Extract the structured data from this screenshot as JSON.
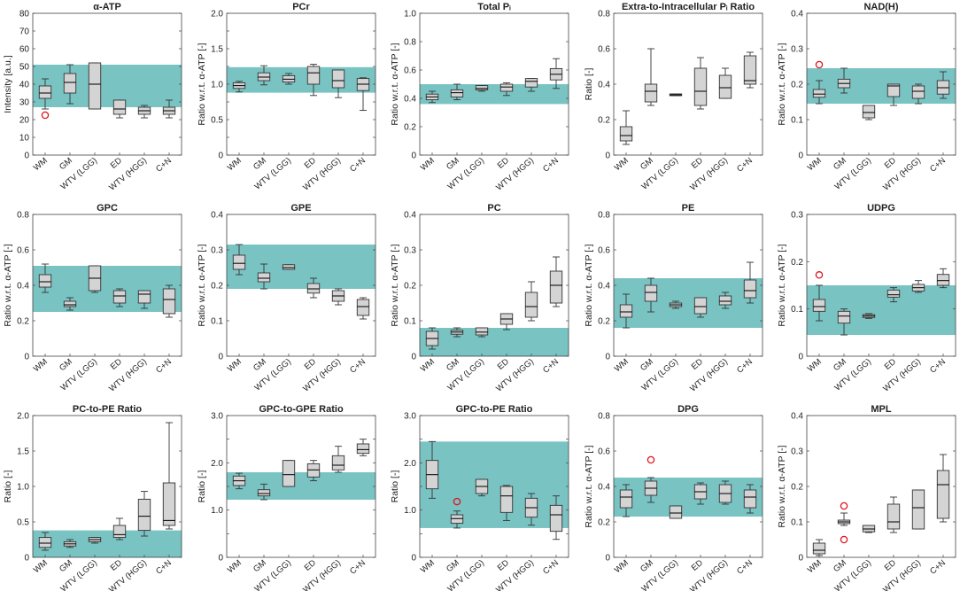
{
  "colors": {
    "band": "#79c3c3",
    "box_fill": "#d4d4d4",
    "box_stroke": "#333333",
    "outlier": "#e0141e",
    "axis": "#444444"
  },
  "categories": [
    "WM",
    "GM",
    "WTV (LGG)",
    "ED",
    "WTV (HGG)",
    "C+N"
  ],
  "chart_data": [
    {
      "type": "box",
      "title": "α-ATP",
      "ylabel": "Intensity [a.u.]",
      "ylim": [
        0,
        80
      ],
      "yticks": [
        0,
        10,
        20,
        30,
        40,
        50,
        60,
        70,
        80
      ],
      "ytick_labels": [
        "0",
        "10",
        "20",
        "30",
        "40",
        "50",
        "60",
        "70",
        "80"
      ],
      "band": [
        27,
        51
      ],
      "boxes": [
        [
          26,
          32,
          35,
          39,
          43
        ],
        [
          29,
          35,
          41,
          46,
          51
        ],
        [
          26,
          26,
          40,
          52,
          52
        ],
        [
          21,
          23,
          26,
          31,
          31
        ],
        [
          21,
          23,
          25,
          27,
          28
        ],
        [
          21,
          23,
          25,
          27,
          31
        ]
      ],
      "outliers": [
        [
          0,
          22.5
        ]
      ]
    },
    {
      "type": "box",
      "title": "PCr",
      "ylabel": "Ratio w.r.t. α-ATP [-]",
      "ylim": [
        0,
        2
      ],
      "yticks": [
        0,
        0.25,
        0.5,
        0.75,
        1,
        1.25,
        1.5,
        1.75,
        2
      ],
      "ytick_labels": [
        "0",
        "",
        "0.5",
        "",
        "1.0",
        "",
        "1.5",
        "",
        "2.0"
      ],
      "band": [
        0.88,
        1.24
      ],
      "boxes": [
        [
          0.89,
          0.94,
          0.98,
          1.02,
          1.04
        ],
        [
          0.99,
          1.05,
          1.1,
          1.16,
          1.26
        ],
        [
          1.0,
          1.03,
          1.07,
          1.12,
          1.15
        ],
        [
          0.84,
          1.0,
          1.16,
          1.25,
          1.28
        ],
        [
          0.81,
          0.95,
          1.05,
          1.2,
          1.2
        ],
        [
          0.63,
          0.91,
          1.0,
          1.08,
          1.09
        ]
      ],
      "outliers": []
    },
    {
      "type": "box",
      "title": "Total Pᵢ",
      "ylabel": "Ratio w.r.t. α-ATP [-]",
      "ylim": [
        0,
        1
      ],
      "yticks": [
        0,
        0.2,
        0.4,
        0.6,
        0.8,
        1.0
      ],
      "ytick_labels": [
        "0",
        "0.2",
        "0.4",
        "0.6",
        "0.8",
        "1.0"
      ],
      "band": [
        0.36,
        0.5
      ],
      "boxes": [
        [
          0.37,
          0.39,
          0.41,
          0.43,
          0.45
        ],
        [
          0.39,
          0.41,
          0.44,
          0.46,
          0.5
        ],
        [
          0.45,
          0.46,
          0.47,
          0.49,
          0.49
        ],
        [
          0.42,
          0.45,
          0.48,
          0.5,
          0.51
        ],
        [
          0.45,
          0.48,
          0.52,
          0.54,
          0.54
        ],
        [
          0.47,
          0.53,
          0.57,
          0.61,
          0.68
        ]
      ],
      "outliers": []
    },
    {
      "type": "box",
      "title": "Extra-to-Intracellular Pᵢ Ratio",
      "ylabel": "Ratio [-]",
      "ylim": [
        0,
        0.8
      ],
      "yticks": [
        0,
        0.2,
        0.4,
        0.6,
        0.8
      ],
      "ytick_labels": [
        "0",
        "0.2",
        "0.4",
        "0.6",
        "0.8"
      ],
      "band": null,
      "boxes": [
        [
          0.06,
          0.08,
          0.11,
          0.16,
          0.25
        ],
        [
          0.28,
          0.3,
          0.36,
          0.4,
          0.6
        ],
        [
          0.335,
          0.335,
          0.34,
          0.345,
          0.345
        ],
        [
          0.26,
          0.28,
          0.36,
          0.49,
          0.55
        ],
        [
          0.32,
          0.32,
          0.38,
          0.45,
          0.49
        ],
        [
          0.38,
          0.4,
          0.42,
          0.56,
          0.58
        ]
      ],
      "outliers": []
    },
    {
      "type": "box",
      "title": "NAD(H)",
      "ylabel": "Ratio w.r.t. α-ATP [-]",
      "ylim": [
        0,
        0.4
      ],
      "yticks": [
        0,
        0.1,
        0.2,
        0.3,
        0.4
      ],
      "ytick_labels": [
        "0",
        "0.1",
        "0.2",
        "0.3",
        "0.4"
      ],
      "band": [
        0.145,
        0.245
      ],
      "boxes": [
        [
          0.145,
          0.163,
          0.172,
          0.185,
          0.21
        ],
        [
          0.175,
          0.19,
          0.202,
          0.214,
          0.245
        ],
        [
          0.1,
          0.105,
          0.12,
          0.14,
          0.14
        ],
        [
          0.14,
          0.165,
          0.195,
          0.2,
          0.2
        ],
        [
          0.145,
          0.16,
          0.18,
          0.195,
          0.2
        ],
        [
          0.16,
          0.172,
          0.19,
          0.21,
          0.235
        ]
      ],
      "outliers": [
        [
          0,
          0.255
        ]
      ]
    },
    {
      "type": "box",
      "title": "GPC",
      "ylabel": "Ratio w.r.t. α-ATP [-]",
      "ylim": [
        0,
        0.8
      ],
      "yticks": [
        0,
        0.2,
        0.4,
        0.6,
        0.8
      ],
      "ytick_labels": [
        "0",
        "0.2",
        "0.4",
        "0.6",
        "0.8"
      ],
      "band": [
        0.25,
        0.51
      ],
      "boxes": [
        [
          0.36,
          0.39,
          0.42,
          0.46,
          0.52
        ],
        [
          0.26,
          0.28,
          0.29,
          0.31,
          0.33
        ],
        [
          0.36,
          0.37,
          0.44,
          0.51,
          0.51
        ],
        [
          0.28,
          0.3,
          0.34,
          0.37,
          0.38
        ],
        [
          0.27,
          0.3,
          0.35,
          0.37,
          0.37
        ],
        [
          0.22,
          0.24,
          0.32,
          0.38,
          0.4
        ]
      ],
      "outliers": []
    },
    {
      "type": "box",
      "title": "GPE",
      "ylabel": "Ratio w.r.t. α-ATP [-]",
      "ylim": [
        0,
        0.4
      ],
      "yticks": [
        0,
        0.1,
        0.2,
        0.3,
        0.4
      ],
      "ytick_labels": [
        "0",
        "0.1",
        "0.2",
        "0.3",
        "0.4"
      ],
      "band": [
        0.19,
        0.315
      ],
      "boxes": [
        [
          0.23,
          0.245,
          0.262,
          0.285,
          0.315
        ],
        [
          0.19,
          0.21,
          0.22,
          0.235,
          0.26
        ],
        [
          0.245,
          0.245,
          0.25,
          0.258,
          0.258
        ],
        [
          0.165,
          0.178,
          0.19,
          0.205,
          0.22
        ],
        [
          0.145,
          0.155,
          0.17,
          0.185,
          0.19
        ],
        [
          0.105,
          0.115,
          0.14,
          0.16,
          0.165
        ]
      ],
      "outliers": []
    },
    {
      "type": "box",
      "title": "PC",
      "ylabel": "Ratio w.r.t. α-ATP [-]",
      "ylim": [
        0,
        0.4
      ],
      "yticks": [
        0,
        0.1,
        0.2,
        0.3,
        0.4
      ],
      "ytick_labels": [
        "0",
        "0.1",
        "0.2",
        "0.3",
        "0.4"
      ],
      "band": [
        0.0,
        0.08
      ],
      "boxes": [
        [
          0.02,
          0.03,
          0.05,
          0.07,
          0.08
        ],
        [
          0.055,
          0.062,
          0.068,
          0.073,
          0.08
        ],
        [
          0.055,
          0.06,
          0.068,
          0.08,
          0.08
        ],
        [
          0.075,
          0.09,
          0.105,
          0.12,
          0.12
        ],
        [
          0.1,
          0.11,
          0.14,
          0.18,
          0.21
        ],
        [
          0.14,
          0.15,
          0.2,
          0.24,
          0.28
        ]
      ],
      "outliers": []
    },
    {
      "type": "box",
      "title": "PE",
      "ylabel": "Ratio w.r.t. α-ATP [-]",
      "ylim": [
        0,
        0.8
      ],
      "yticks": [
        0,
        0.2,
        0.4,
        0.6,
        0.8
      ],
      "ytick_labels": [
        "0",
        "0.2",
        "0.4",
        "0.6",
        "0.8"
      ],
      "band": [
        0.16,
        0.44
      ],
      "boxes": [
        [
          0.16,
          0.22,
          0.25,
          0.29,
          0.35
        ],
        [
          0.25,
          0.31,
          0.36,
          0.4,
          0.44
        ],
        [
          0.27,
          0.28,
          0.29,
          0.3,
          0.31
        ],
        [
          0.22,
          0.24,
          0.28,
          0.33,
          0.33
        ],
        [
          0.27,
          0.29,
          0.31,
          0.34,
          0.36
        ],
        [
          0.3,
          0.33,
          0.37,
          0.43,
          0.53
        ]
      ],
      "outliers": []
    },
    {
      "type": "box",
      "title": "UDPG",
      "ylabel": "Ratio w.r.t. α-ATP [-]",
      "ylim": [
        0,
        0.3
      ],
      "yticks": [
        0,
        0.1,
        0.2,
        0.3
      ],
      "ytick_labels": [
        "0",
        "0.1",
        "0.2",
        "0.3"
      ],
      "band": [
        0.045,
        0.15
      ],
      "boxes": [
        [
          0.075,
          0.095,
          0.105,
          0.12,
          0.15
        ],
        [
          0.045,
          0.07,
          0.085,
          0.095,
          0.1
        ],
        [
          0.08,
          0.082,
          0.085,
          0.088,
          0.09
        ],
        [
          0.115,
          0.125,
          0.13,
          0.14,
          0.145
        ],
        [
          0.135,
          0.138,
          0.145,
          0.152,
          0.16
        ],
        [
          0.145,
          0.15,
          0.16,
          0.173,
          0.185
        ]
      ],
      "outliers": [
        [
          0,
          0.172
        ]
      ]
    },
    {
      "type": "box",
      "title": "PC-to-PE Ratio",
      "ylabel": "Ratio [-]",
      "ylim": [
        0,
        2
      ],
      "yticks": [
        0,
        0.5,
        1,
        1.5,
        2
      ],
      "ytick_labels": [
        "0",
        "0.5",
        "1.0",
        "1.5",
        "2.0"
      ],
      "band": [
        0.0,
        0.38
      ],
      "boxes": [
        [
          0.1,
          0.14,
          0.2,
          0.28,
          0.35
        ],
        [
          0.14,
          0.16,
          0.19,
          0.22,
          0.25
        ],
        [
          0.2,
          0.22,
          0.25,
          0.28,
          0.28
        ],
        [
          0.25,
          0.28,
          0.32,
          0.45,
          0.55
        ],
        [
          0.3,
          0.38,
          0.58,
          0.82,
          0.93
        ],
        [
          0.4,
          0.45,
          0.52,
          1.05,
          1.9
        ]
      ],
      "outliers": []
    },
    {
      "type": "box",
      "title": "GPC-to-GPE Ratio",
      "ylabel": "Ratio [-]",
      "ylim": [
        0,
        3
      ],
      "yticks": [
        0,
        0.5,
        1,
        1.5,
        2,
        2.5,
        3
      ],
      "ytick_labels": [
        "0",
        "",
        "1.0",
        "",
        "2.0",
        "",
        "3.0"
      ],
      "band": [
        1.22,
        1.8
      ],
      "boxes": [
        [
          1.45,
          1.52,
          1.62,
          1.72,
          1.78
        ],
        [
          1.22,
          1.3,
          1.35,
          1.43,
          1.55
        ],
        [
          1.5,
          1.5,
          1.75,
          2.05,
          2.05
        ],
        [
          1.62,
          1.7,
          1.85,
          1.98,
          2.05
        ],
        [
          1.8,
          1.85,
          1.95,
          2.15,
          2.35
        ],
        [
          2.15,
          2.2,
          2.28,
          2.4,
          2.5
        ]
      ],
      "outliers": []
    },
    {
      "type": "box",
      "title": "GPC-to-PE Ratio",
      "ylabel": "Ratio [-]",
      "ylim": [
        0,
        3
      ],
      "yticks": [
        0,
        0.5,
        1,
        1.5,
        2,
        2.5,
        3
      ],
      "ytick_labels": [
        "0",
        "",
        "1.0",
        "",
        "2.0",
        "",
        "3.0"
      ],
      "band": [
        0.62,
        2.45
      ],
      "boxes": [
        [
          1.25,
          1.45,
          1.75,
          2.05,
          2.45
        ],
        [
          0.62,
          0.72,
          0.82,
          0.9,
          0.98
        ],
        [
          1.3,
          1.35,
          1.5,
          1.65,
          1.65
        ],
        [
          0.78,
          0.95,
          1.3,
          1.5,
          1.52
        ],
        [
          0.68,
          0.85,
          1.05,
          1.25,
          1.35
        ],
        [
          0.38,
          0.55,
          0.9,
          1.1,
          1.3
        ]
      ],
      "outliers": [
        [
          1,
          1.18
        ]
      ]
    },
    {
      "type": "box",
      "title": "DPG",
      "ylabel": "Ratio w.r.t. α-ATP [-]",
      "ylim": [
        0,
        0.8
      ],
      "yticks": [
        0,
        0.2,
        0.4,
        0.6,
        0.8
      ],
      "ytick_labels": [
        "0",
        "0.2",
        "0.4",
        "0.6",
        "0.8"
      ],
      "band": [
        0.23,
        0.45
      ],
      "boxes": [
        [
          0.23,
          0.28,
          0.34,
          0.38,
          0.41
        ],
        [
          0.31,
          0.35,
          0.39,
          0.43,
          0.45
        ],
        [
          0.22,
          0.22,
          0.25,
          0.29,
          0.29
        ],
        [
          0.3,
          0.33,
          0.37,
          0.41,
          0.42
        ],
        [
          0.3,
          0.31,
          0.36,
          0.41,
          0.43
        ],
        [
          0.25,
          0.28,
          0.34,
          0.38,
          0.41
        ]
      ],
      "outliers": [
        [
          1,
          0.55
        ]
      ]
    },
    {
      "type": "box",
      "title": "MPL",
      "ylabel": "Ratio w.r.t. α-ATP [-]",
      "ylim": [
        0,
        0.4
      ],
      "yticks": [
        0,
        0.1,
        0.2,
        0.3,
        0.4
      ],
      "ytick_labels": [
        "0",
        "0.1",
        "0.2",
        "0.3",
        "0.4"
      ],
      "band": null,
      "boxes": [
        [
          0.005,
          0.01,
          0.02,
          0.04,
          0.05
        ],
        [
          0.09,
          0.095,
          0.1,
          0.105,
          0.125
        ],
        [
          0.07,
          0.072,
          0.08,
          0.09,
          0.09
        ],
        [
          0.07,
          0.08,
          0.1,
          0.15,
          0.17
        ],
        [
          0.08,
          0.08,
          0.14,
          0.19,
          0.19
        ],
        [
          0.1,
          0.11,
          0.205,
          0.245,
          0.29
        ]
      ],
      "outliers": [
        [
          1,
          0.145
        ],
        [
          1,
          0.05
        ]
      ]
    }
  ]
}
